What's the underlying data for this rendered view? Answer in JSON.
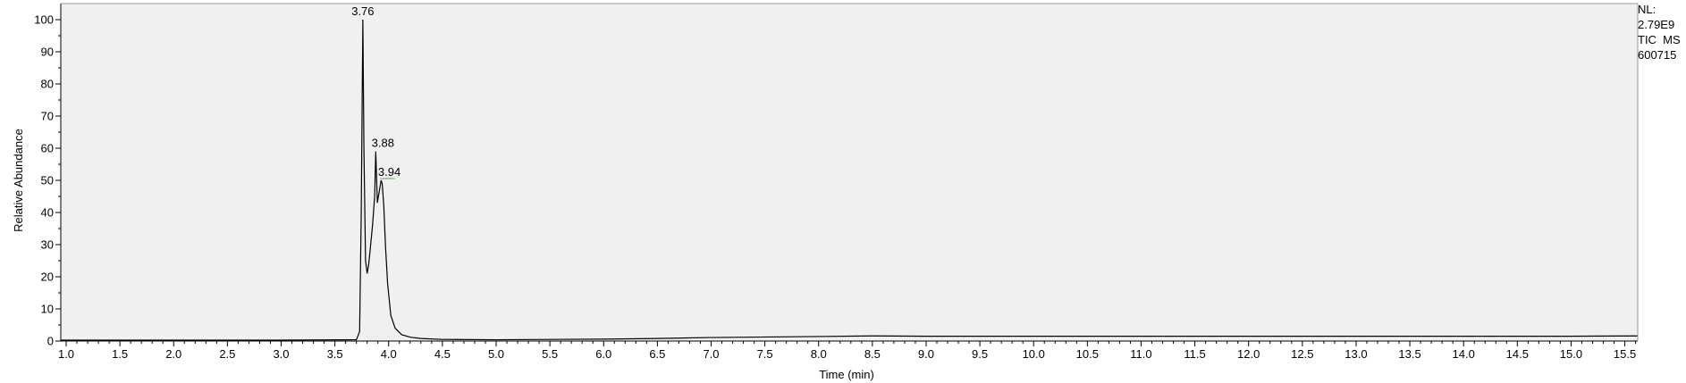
{
  "side_info": {
    "line1": "NL:",
    "line2": "2.79E9",
    "line3": "TIC  MS",
    "line4": "600715"
  },
  "chart_data": {
    "type": "line",
    "title": "",
    "xlabel": "Time (min)",
    "ylabel": "Relative Abundance",
    "xlim": [
      0.95,
      15.62
    ],
    "ylim": [
      0,
      100
    ],
    "grid": false,
    "x_ticks": [
      "1.0",
      "1.5",
      "2.0",
      "2.5",
      "3.0",
      "3.5",
      "4.0",
      "4.5",
      "5.0",
      "5.5",
      "6.0",
      "6.5",
      "7.0",
      "7.5",
      "8.0",
      "8.5",
      "9.0",
      "9.5",
      "10.0",
      "10.5",
      "11.0",
      "11.5",
      "12.0",
      "12.5",
      "13.0",
      "13.5",
      "14.0",
      "14.5",
      "15.0",
      "15.5"
    ],
    "y_ticks": [
      "0",
      "10",
      "20",
      "30",
      "40",
      "50",
      "60",
      "70",
      "80",
      "90",
      "100"
    ],
    "peak_labels": [
      {
        "x": 3.76,
        "y": 100,
        "text": "3.76"
      },
      {
        "x": 3.88,
        "y": 59,
        "text": "3.88"
      },
      {
        "x": 3.94,
        "y": 50,
        "text": "3.94"
      }
    ],
    "series": [
      {
        "x": [
          0.95,
          2.0,
          3.0,
          3.7,
          3.73,
          3.745,
          3.76,
          3.77,
          3.785,
          3.8,
          3.815,
          3.83,
          3.85,
          3.87,
          3.88,
          3.895,
          3.91,
          3.93,
          3.94,
          3.955,
          3.97,
          3.99,
          4.02,
          4.06,
          4.12,
          4.2,
          4.3,
          4.5,
          5.0,
          5.5,
          6.0,
          6.5,
          7.0,
          8.0,
          8.5,
          9.0,
          10.0,
          11.0,
          12.0,
          13.0,
          14.0,
          15.0,
          15.62
        ],
        "y": [
          0.3,
          0.3,
          0.3,
          0.4,
          3,
          40,
          100,
          60,
          25,
          21,
          24,
          29,
          36,
          45,
          59,
          43,
          46,
          50,
          49,
          42,
          30,
          18,
          8,
          4,
          2,
          1.2,
          0.8,
          0.5,
          0.4,
          0.5,
          0.6,
          0.8,
          1.1,
          1.4,
          1.6,
          1.5,
          1.5,
          1.5,
          1.5,
          1.5,
          1.5,
          1.5,
          1.6
        ]
      }
    ]
  }
}
